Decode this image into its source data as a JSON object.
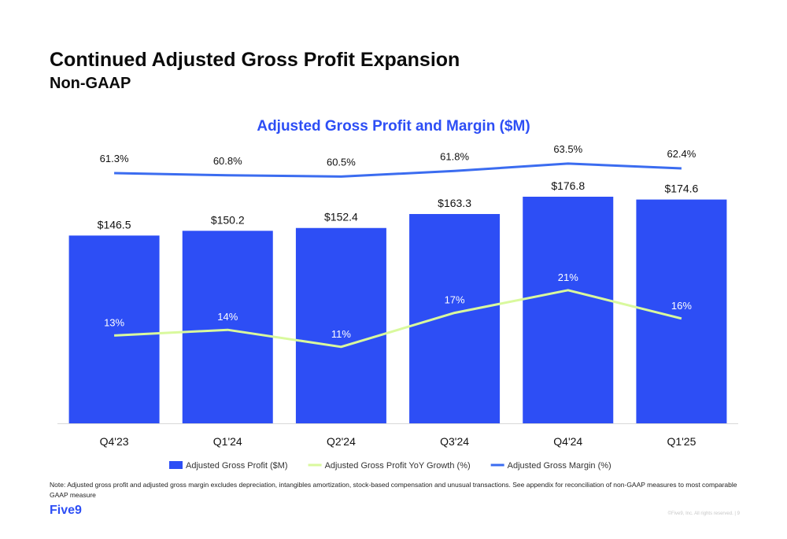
{
  "header": {
    "title": "Continued Adjusted Gross Profit Expansion",
    "subtitle": "Non-GAAP"
  },
  "chart_data": {
    "type": "bar",
    "title": "Adjusted Gross Profit and Margin ($M)",
    "categories": [
      "Q4'23",
      "Q1'24",
      "Q2'24",
      "Q3'24",
      "Q4'24",
      "Q1'25"
    ],
    "series": [
      {
        "name": "Adjusted Gross Profit ($M)",
        "kind": "bar",
        "color": "#2d4ef5",
        "values": [
          146.5,
          150.2,
          152.4,
          163.3,
          176.8,
          174.6
        ],
        "labels": [
          "$146.5",
          "$150.2",
          "$152.4",
          "$163.3",
          "$176.8",
          "$174.6"
        ]
      },
      {
        "name": "Adjusted Gross Profit YoY Growth (%)",
        "kind": "line",
        "color": "#d9f99d",
        "values": [
          13,
          14,
          11,
          17,
          21,
          16
        ],
        "labels": [
          "13%",
          "14%",
          "11%",
          "17%",
          "21%",
          "16%"
        ]
      },
      {
        "name": "Adjusted Gross Margin (%)",
        "kind": "line",
        "color": "#3b6cf0",
        "values": [
          61.3,
          60.8,
          60.5,
          61.8,
          63.5,
          62.4
        ],
        "labels": [
          "61.3%",
          "60.8%",
          "60.5%",
          "61.8%",
          "63.5%",
          "62.4%"
        ]
      }
    ],
    "legend_position": "bottom",
    "grid": false
  },
  "footer": {
    "note": "Note: Adjusted gross profit and adjusted gross margin excludes depreciation, intangibles amortization, stock-based compensation and unusual transactions. See appendix for reconciliation of non-GAAP measures to most comparable GAAP measure",
    "logo_text": "Five9",
    "copyright": "©Five9, Inc. All rights reserved. | 9"
  }
}
